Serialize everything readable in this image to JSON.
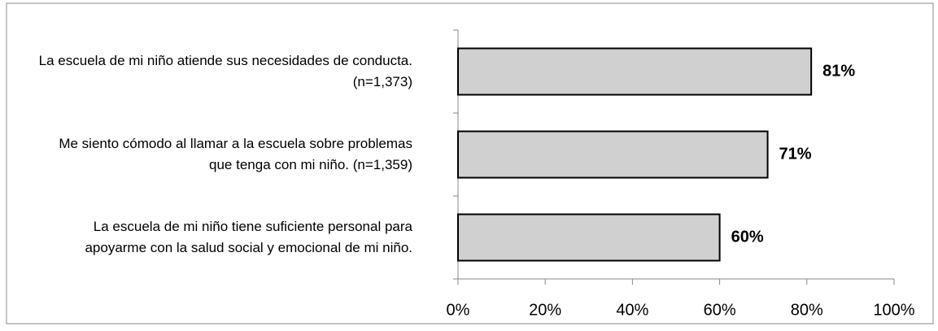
{
  "chart_data": {
    "type": "bar",
    "orientation": "horizontal",
    "categories": [
      "La escuela de mi niño atiende sus necesidades de conducta. (n=1,373)",
      "Me siento cómodo al llamar a la escuela sobre problemas que tenga con mi niño. (n=1,359)",
      "La escuela de mi niño tiene suficiente personal para apoyarme con la salud social y emocional de mi niño."
    ],
    "values": [
      81,
      71,
      60
    ],
    "value_labels": [
      "81%",
      "71%",
      "60%"
    ],
    "color": "#d0d0d0",
    "xlim": [
      0,
      100
    ],
    "xticks": [
      {
        "value": 0,
        "label": "0%"
      },
      {
        "value": 20,
        "label": "20%"
      },
      {
        "value": 40,
        "label": "40%"
      },
      {
        "value": 60,
        "label": "60%"
      },
      {
        "value": 80,
        "label": "80%"
      },
      {
        "value": 100,
        "label": "100%"
      }
    ],
    "grid": false
  }
}
